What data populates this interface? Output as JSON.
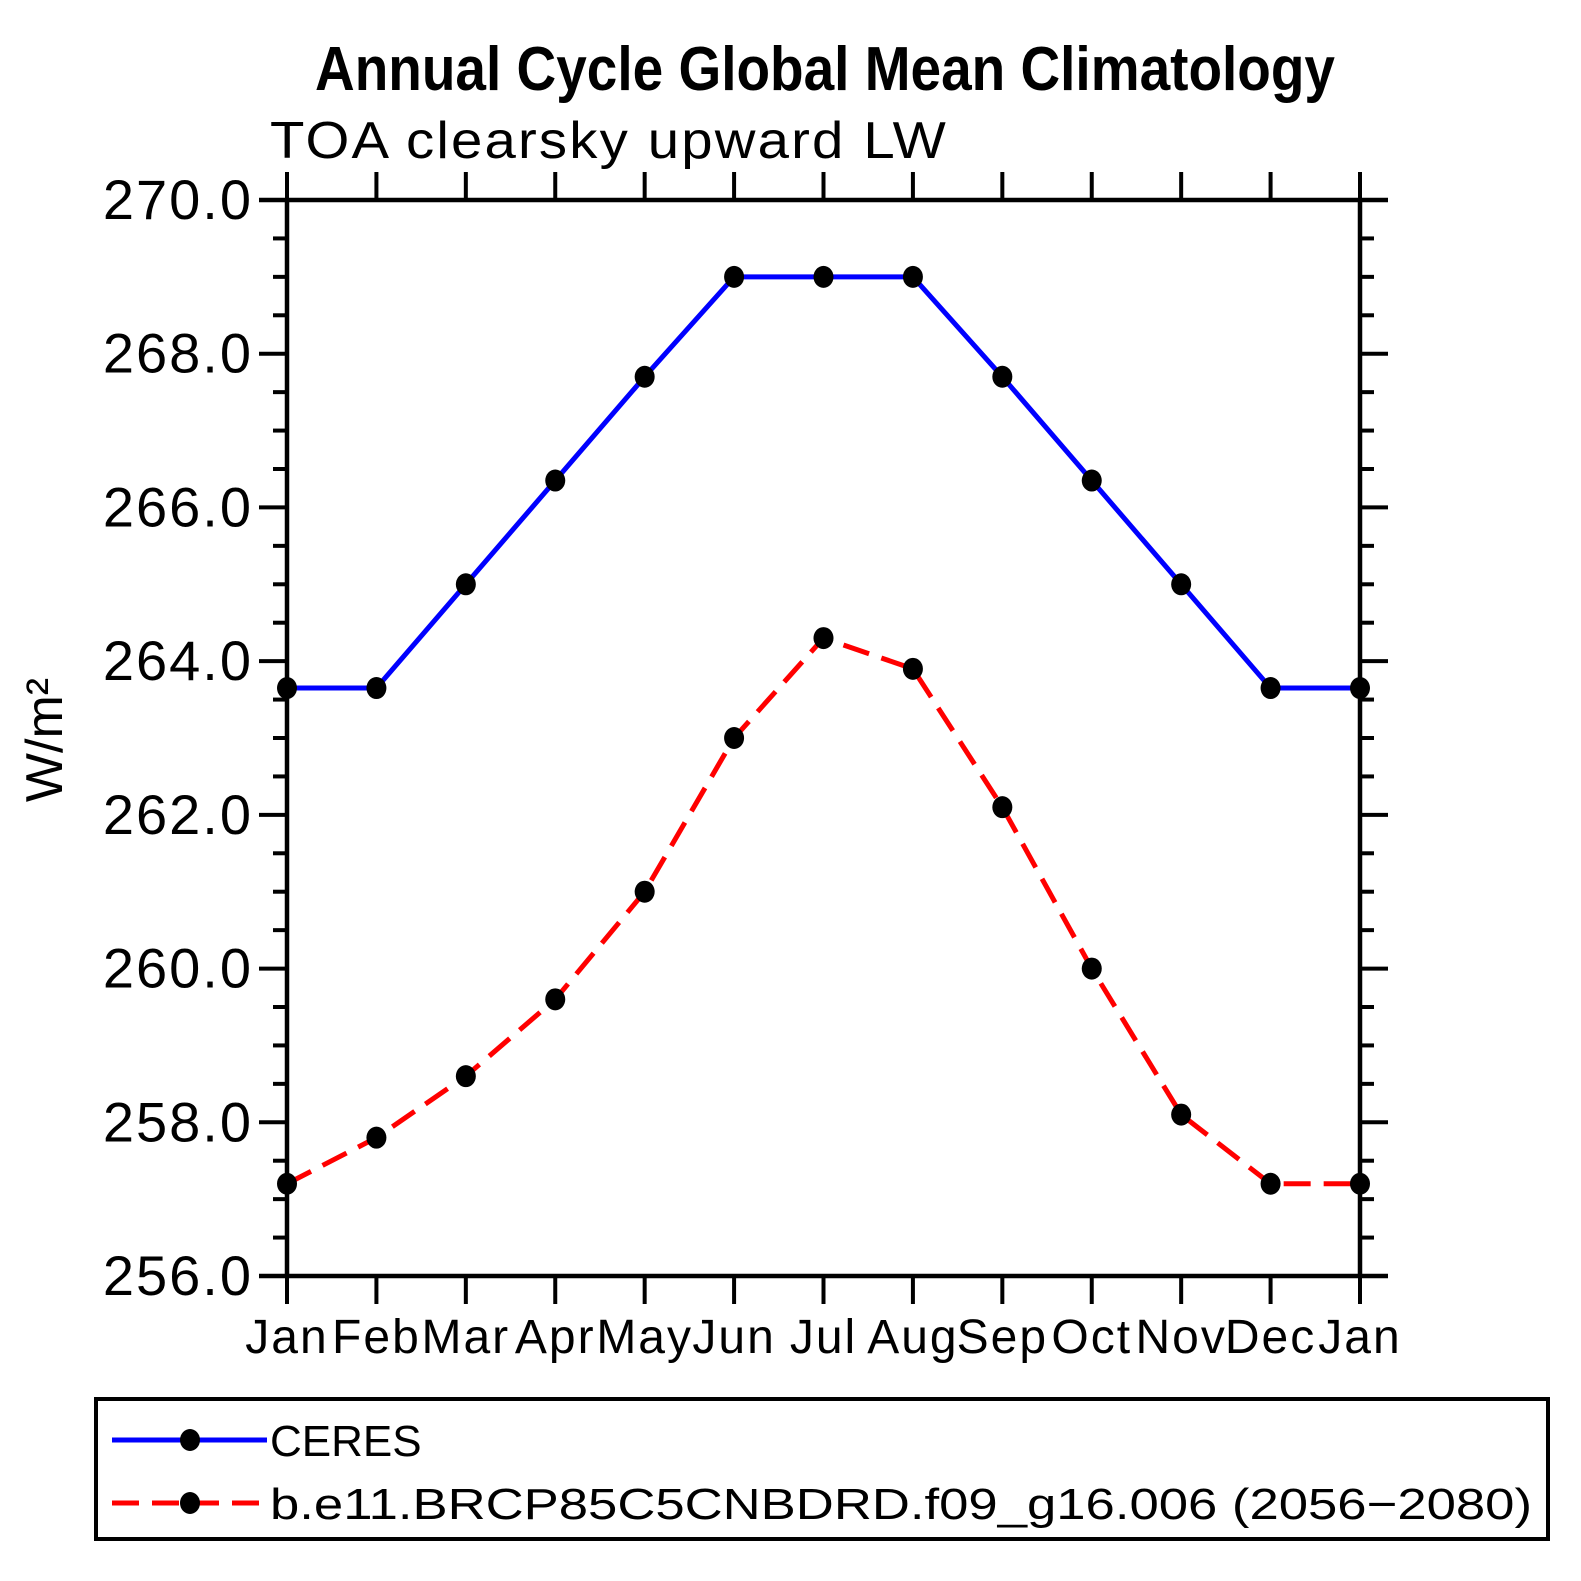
{
  "chart_data": {
    "type": "line",
    "title": "Annual Cycle Global Mean Climatology",
    "subtitle": "TOA clearsky upward LW",
    "ylabel": "W/m²",
    "xlabel": "",
    "grid": false,
    "legend_position": "bottom",
    "categories": [
      "Jan",
      "Feb",
      "Mar",
      "Apr",
      "May",
      "Jun",
      "Jul",
      "Aug",
      "Sep",
      "Oct",
      "Nov",
      "Dec",
      "Jan"
    ],
    "ylim": [
      256.0,
      270.0
    ],
    "ytick_step": 2.0,
    "yminor_step": 0.5,
    "y_ticks": [
      {
        "value": 270.0,
        "label": "270.0"
      },
      {
        "value": 268.0,
        "label": "268.0"
      },
      {
        "value": 266.0,
        "label": "266.0"
      },
      {
        "value": 264.0,
        "label": "264.0"
      },
      {
        "value": 262.0,
        "label": "262.0"
      },
      {
        "value": 260.0,
        "label": "260.0"
      },
      {
        "value": 258.0,
        "label": "258.0"
      },
      {
        "value": 256.0,
        "label": "256.0"
      }
    ],
    "series": [
      {
        "name": "CERES",
        "color": "#0000ff",
        "line_style": "solid",
        "marker": "circle",
        "marker_color": "#000000",
        "values": [
          263.65,
          263.65,
          265.0,
          266.35,
          267.7,
          269.0,
          269.0,
          269.0,
          267.7,
          266.35,
          265.0,
          263.65,
          263.65
        ]
      },
      {
        "name": "b.e11.BRCP85C5CNBDRD.f09_g16.006 (2056−2080)",
        "color": "#ff0000",
        "line_style": "dashed",
        "marker": "circle",
        "marker_color": "#000000",
        "values": [
          257.2,
          257.8,
          258.6,
          259.6,
          261.0,
          263.0,
          264.3,
          263.9,
          262.1,
          260.0,
          258.1,
          257.2,
          257.2
        ]
      }
    ]
  }
}
